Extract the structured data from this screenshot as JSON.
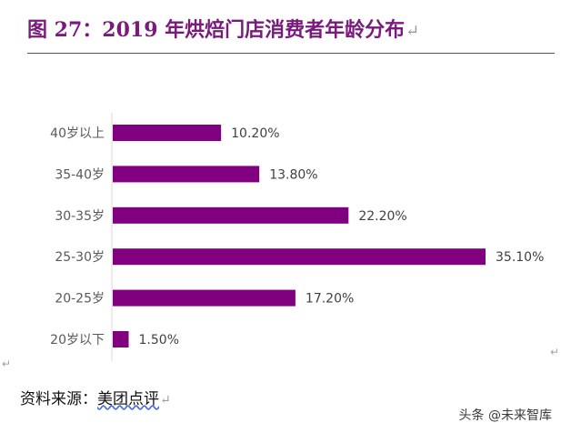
{
  "title": {
    "text": "图 27：2019 年烘焙门店消费者年龄分布",
    "mark": "↵"
  },
  "chart_data": {
    "type": "bar",
    "orientation": "horizontal",
    "categories": [
      "40岁以上",
      "35-40岁",
      "30-35岁",
      "25-30岁",
      "20-25岁",
      "20岁以下"
    ],
    "values": [
      10.2,
      13.8,
      22.2,
      35.1,
      17.2,
      1.5
    ],
    "value_labels": [
      "10.20%",
      "13.80%",
      "22.20%",
      "35.10%",
      "17.20%",
      "1.50%"
    ],
    "xlim": [
      0,
      35.1
    ],
    "bar_color": "#800080",
    "grid": false,
    "legend": "none"
  },
  "source": {
    "prefix": "资料来源：",
    "name": "美团点评",
    "mark": "↵"
  },
  "side_marks": {
    "left": "↵",
    "right": "↵"
  },
  "watermark": "头条 @未来智库"
}
